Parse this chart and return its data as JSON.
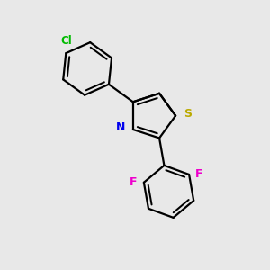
{
  "background_color": "#e8e8e8",
  "bond_color": "#000000",
  "bond_width": 1.6,
  "atom_labels": {
    "N": {
      "color": "#0000ee",
      "fontsize": 9,
      "fontweight": "bold"
    },
    "S": {
      "color": "#bbaa00",
      "fontsize": 9,
      "fontweight": "bold"
    },
    "Cl": {
      "color": "#00bb00",
      "fontsize": 8.5,
      "fontweight": "bold"
    },
    "F": {
      "color": "#ee00cc",
      "fontsize": 9,
      "fontweight": "bold"
    }
  },
  "figsize": [
    3.0,
    3.0
  ],
  "dpi": 100,
  "xlim": [
    -2.5,
    2.5
  ],
  "ylim": [
    -3.0,
    3.2
  ]
}
